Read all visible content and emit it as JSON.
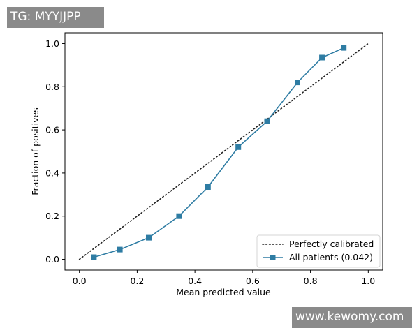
{
  "watermarks": {
    "top_left": "TG: MYYJJPP",
    "bottom_right": "www.kewomy.com"
  },
  "colors": {
    "series": "#2e7ca3",
    "reference": "#222222",
    "axes": "#000000"
  },
  "chart_data": {
    "type": "line",
    "title": "",
    "xlabel": "Mean predicted value",
    "ylabel": "Fraction of positives",
    "xlim": [
      -0.05,
      1.05
    ],
    "ylim": [
      -0.05,
      1.05
    ],
    "xticks": [
      0.0,
      0.2,
      0.4,
      0.6,
      0.8,
      1.0
    ],
    "yticks": [
      0.0,
      0.2,
      0.4,
      0.6,
      0.8,
      1.0
    ],
    "tick_labels": [
      "0.0",
      "0.2",
      "0.4",
      "0.6",
      "0.8",
      "1.0"
    ],
    "grid": false,
    "legend": "lower-right",
    "reference_line": {
      "name": "Perfectly calibrated",
      "style": "dotted",
      "x": [
        0.0,
        1.0
      ],
      "y": [
        0.0,
        1.0
      ]
    },
    "series": [
      {
        "name": "All patients (0.042)",
        "marker": "square",
        "x": [
          0.05,
          0.14,
          0.24,
          0.345,
          0.445,
          0.55,
          0.65,
          0.755,
          0.84,
          0.915
        ],
        "y": [
          0.01,
          0.045,
          0.1,
          0.2,
          0.335,
          0.52,
          0.64,
          0.82,
          0.935,
          0.98
        ]
      }
    ]
  }
}
